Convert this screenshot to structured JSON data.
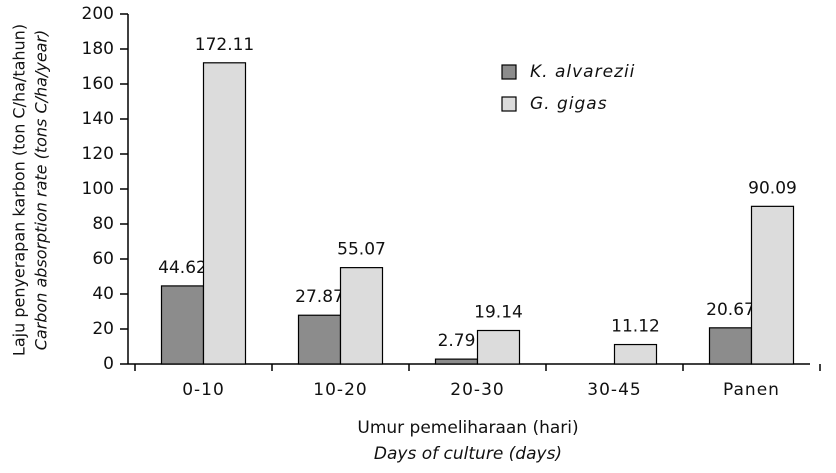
{
  "chart_data": {
    "type": "bar",
    "y_label": [
      "Laju penyerapan karbon (ton C/ha/tahun)",
      "Carbon absorption rate (tons C/ha/year)"
    ],
    "x_label": [
      "Umur pemeliharaan (hari)",
      "Days of culture (days)"
    ],
    "categories": [
      "0-10",
      "10-20",
      "20-30",
      "30-45",
      "Panen"
    ],
    "series": [
      {
        "name": "K. alvarezii",
        "color": "#8c8c8c",
        "values": [
          44.62,
          27.87,
          2.79,
          null,
          20.67
        ]
      },
      {
        "name": "G. gigas",
        "color": "#dcdcdc",
        "values": [
          172.11,
          55.07,
          19.14,
          11.12,
          90.09
        ]
      }
    ],
    "ylim": [
      0,
      200
    ],
    "yticks": [
      0,
      20,
      40,
      60,
      80,
      100,
      120,
      140,
      160,
      180,
      200
    ],
    "grid": false
  }
}
